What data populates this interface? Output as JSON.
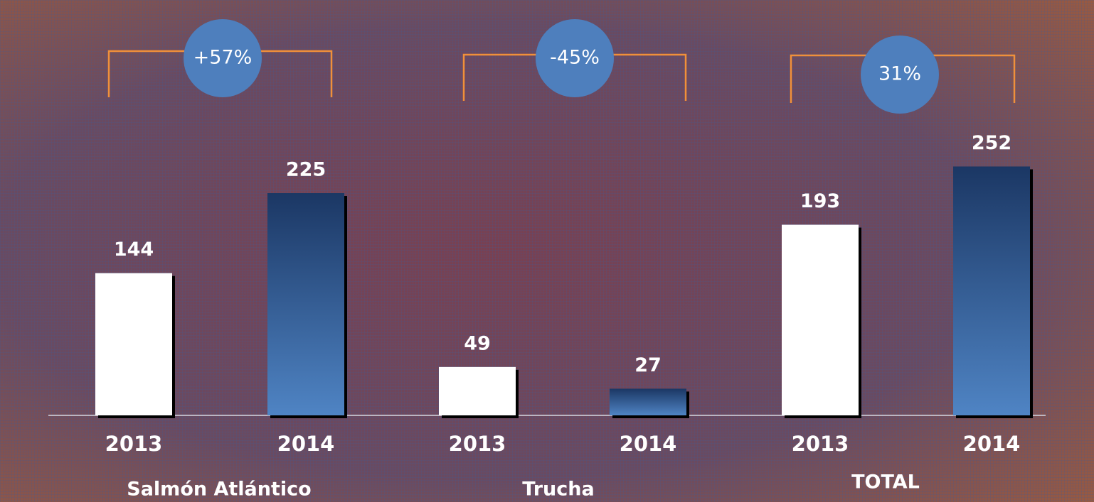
{
  "chart_data": {
    "type": "bar",
    "categories": [
      "2013",
      "2014",
      "2013",
      "2014",
      "2013",
      "2014"
    ],
    "values": [
      144,
      225,
      49,
      27,
      193,
      252
    ],
    "colors": [
      "#ffffff",
      "#4a7cbb",
      "#ffffff",
      "#4a7cbb",
      "#ffffff",
      "#4a7cbb"
    ],
    "groups": [
      {
        "label": "Salmón Atlántico",
        "change": "+57%"
      },
      {
        "label": "Trucha",
        "change": "-45%"
      },
      {
        "label": "TOTAL",
        "change": "31%"
      }
    ]
  }
}
